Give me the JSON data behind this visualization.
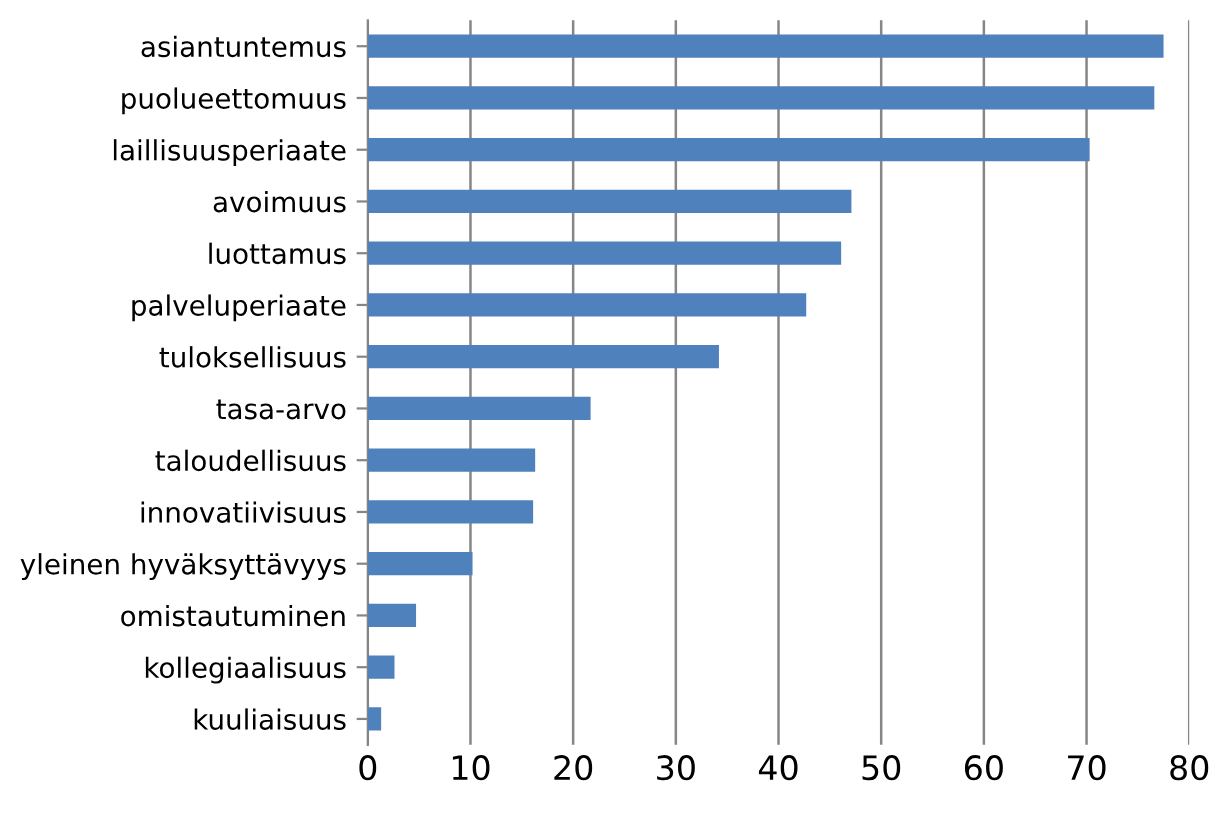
{
  "chart_data": {
    "type": "bar",
    "orientation": "horizontal",
    "categories": [
      "asiantuntemus",
      "puolueettomuus",
      "laillisuusperiaate",
      "avoimuus",
      "luottamus",
      "palveluperiaate",
      "tuloksellisuus",
      "tasa-arvo",
      "taloudellisuus",
      "innovatiivisuus",
      "yleinen hyväksyttävyys",
      "omistautuminen",
      "kollegiaalisuus",
      "kuuliaisuus"
    ],
    "values": [
      77.5,
      76.6,
      70.3,
      47.1,
      46.1,
      42.7,
      34.2,
      21.7,
      16.3,
      16.1,
      10.2,
      4.7,
      2.6,
      1.3
    ],
    "color": "#4f81bd",
    "xlim": [
      0,
      80
    ],
    "xticks": [
      0,
      10,
      20,
      30,
      40,
      50,
      60,
      70,
      80
    ],
    "grid": "x",
    "legend": false
  }
}
